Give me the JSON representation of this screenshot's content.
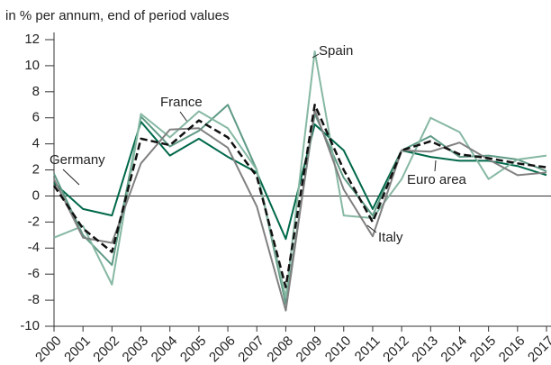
{
  "chart_data": {
    "type": "line",
    "subtitle": "in % per annum, end of period values",
    "categories": [
      "2000",
      "2001",
      "2002",
      "2003",
      "2004",
      "2005",
      "2006",
      "2007",
      "2008",
      "2009",
      "2010",
      "2011",
      "2012",
      "2013",
      "2014",
      "2015",
      "2016",
      "2017"
    ],
    "series": [
      {
        "name": "Germany",
        "color": "#00684a",
        "values": [
          1.0,
          -1.0,
          -1.5,
          5.7,
          3.1,
          4.4,
          3.0,
          1.8,
          -3.3,
          5.5,
          3.5,
          -1.0,
          3.5,
          3.0,
          2.7,
          2.7,
          2.3,
          1.6
        ]
      },
      {
        "name": "France",
        "color": "#5e9a84",
        "values": [
          1.7,
          -3.0,
          -5.3,
          6.1,
          3.8,
          5.0,
          7.0,
          2.0,
          -8.3,
          6.3,
          1.4,
          -1.5,
          3.5,
          4.6,
          3.0,
          3.1,
          2.8,
          1.9
        ]
      },
      {
        "name": "Spain",
        "color": "#86b8a3",
        "values": [
          -3.2,
          -2.3,
          -6.8,
          6.3,
          4.5,
          6.5,
          5.2,
          2.0,
          -7.8,
          11.1,
          -1.5,
          -1.7,
          1.3,
          6.0,
          4.9,
          1.3,
          2.8,
          3.1
        ]
      },
      {
        "name": "Italy",
        "color": "#808080",
        "values": [
          1.3,
          -3.2,
          -3.6,
          2.5,
          5.1,
          5.2,
          3.7,
          -0.8,
          -8.8,
          6.6,
          0.5,
          -3.1,
          3.5,
          3.4,
          4.1,
          2.8,
          1.6,
          1.8
        ]
      },
      {
        "name": "Euro area",
        "color": "#111111",
        "dashed": true,
        "values": [
          0.8,
          -2.5,
          -4.3,
          4.4,
          3.9,
          5.8,
          4.5,
          1.5,
          -7.0,
          7.0,
          2.0,
          -2.0,
          3.5,
          4.2,
          3.2,
          2.9,
          2.5,
          2.2
        ]
      }
    ],
    "ylim": [
      -10,
      12
    ],
    "yticks": [
      -10,
      -8,
      -6,
      -4,
      -2,
      0,
      2,
      4,
      6,
      8,
      10,
      12
    ]
  }
}
